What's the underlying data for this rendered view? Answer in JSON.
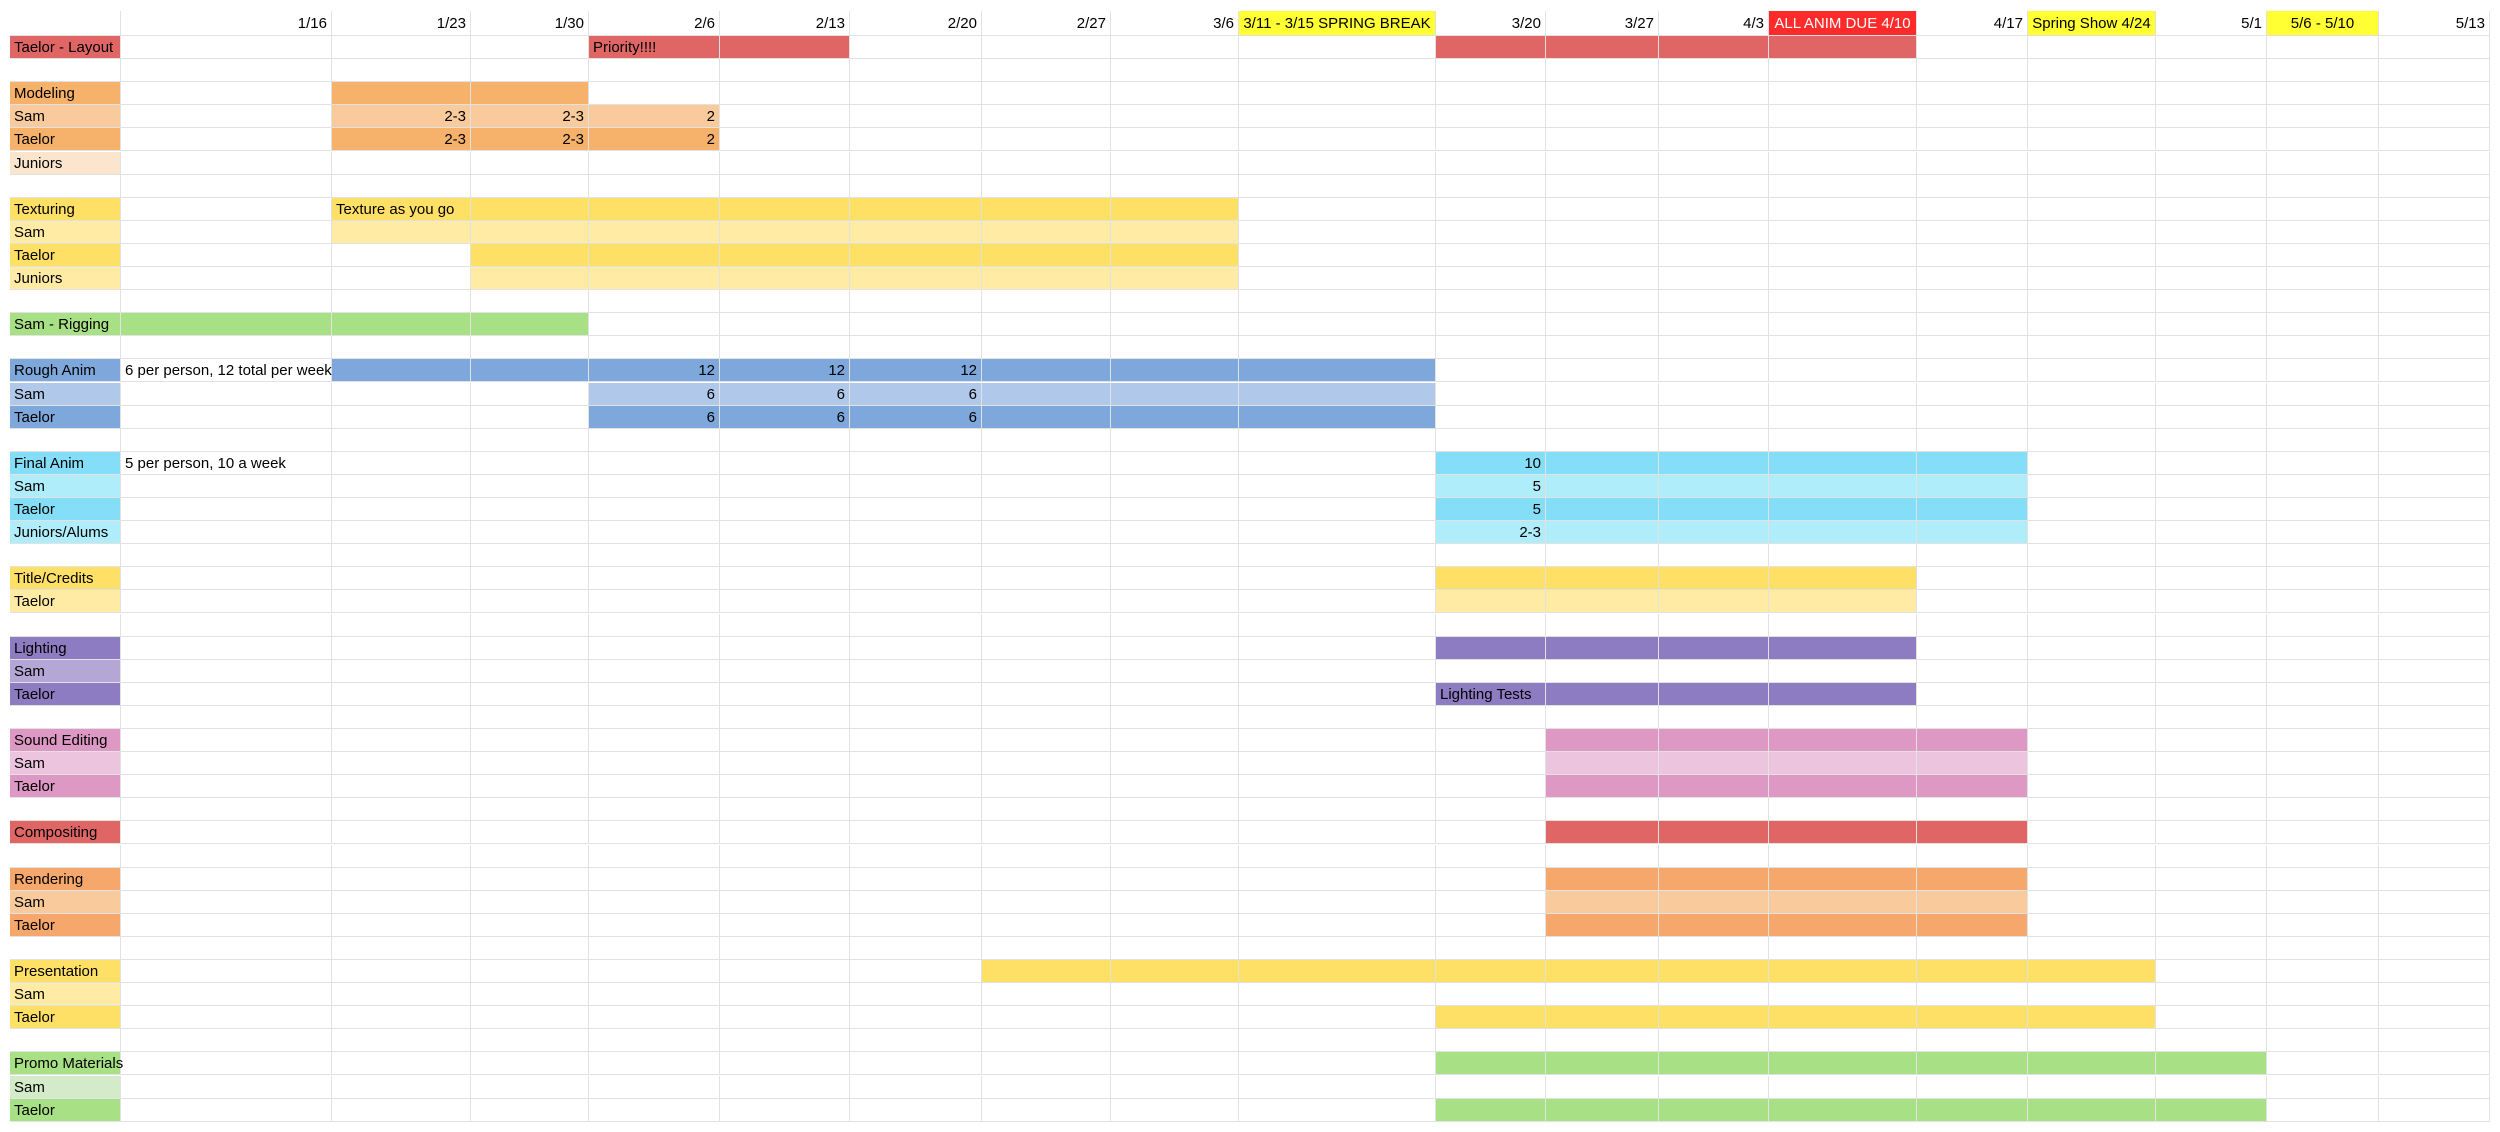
{
  "sheet": {
    "columns": [
      "",
      "1/16",
      "1/23",
      "1/30",
      "2/6",
      "2/13",
      "2/20",
      "2/27",
      "3/6",
      "3/11 - 3/15 SPRING BREAK",
      "3/20",
      "3/27",
      "4/3",
      "ALL ANIM DUE 4/10",
      "4/17",
      "Spring Show 4/24",
      "5/1",
      "5/6 - 5/10",
      "5/13"
    ],
    "header_styles": {
      "9": {
        "bg": "#ffff33",
        "align": "center"
      },
      "13": {
        "bg": "#ff2a2a",
        "color": "#ffffff",
        "align": "center"
      },
      "15": {
        "bg": "#ffff33",
        "align": "center"
      },
      "17": {
        "bg": "#ffff33",
        "align": "center"
      }
    },
    "rows": [
      {
        "label": "Taelor - Layout",
        "bg": "#e06666",
        "spans": [
          {
            "from": 4,
            "to": 5,
            "bg": "#e06666"
          },
          {
            "from": 10,
            "to": 13,
            "bg": "#e06666"
          }
        ],
        "texts": {
          "4": "Priority!!!!"
        }
      },
      {
        "label": ""
      },
      {
        "label": "Modeling",
        "bg": "#f6b26b",
        "spans": [
          {
            "from": 2,
            "to": 3,
            "bg": "#f6b26b"
          }
        ]
      },
      {
        "label": "Sam",
        "bg": "#f9cb9c",
        "spans": [
          {
            "from": 2,
            "to": 4,
            "bg": "#f9cb9c"
          }
        ],
        "values": {
          "2": "2-3",
          "3": "2-3",
          "4": "2"
        }
      },
      {
        "label": "Taelor",
        "bg": "#f6b26b",
        "spans": [
          {
            "from": 2,
            "to": 4,
            "bg": "#f6b26b"
          }
        ],
        "values": {
          "2": "2-3",
          "3": "2-3",
          "4": "2"
        }
      },
      {
        "label": "Juniors",
        "bg": "#fce5cd"
      },
      {
        "label": ""
      },
      {
        "label": "Texturing",
        "bg": "#ffe066",
        "spans": [
          {
            "from": 2,
            "to": 8,
            "bg": "#ffe066"
          }
        ],
        "texts": {
          "2": "Texture as you go"
        }
      },
      {
        "label": "Sam",
        "bg": "#ffeba3",
        "spans": [
          {
            "from": 2,
            "to": 8,
            "bg": "#ffeba3"
          }
        ]
      },
      {
        "label": "Taelor",
        "bg": "#ffe066",
        "spans": [
          {
            "from": 3,
            "to": 8,
            "bg": "#ffe066"
          }
        ]
      },
      {
        "label": "Juniors",
        "bg": "#ffeba3",
        "spans": [
          {
            "from": 3,
            "to": 8,
            "bg": "#ffeba3"
          }
        ]
      },
      {
        "label": ""
      },
      {
        "label": "Sam - Rigging",
        "bg": "#a8e085",
        "spans": [
          {
            "from": 1,
            "to": 3,
            "bg": "#a8e085"
          }
        ]
      },
      {
        "label": ""
      },
      {
        "label": "Rough Anim",
        "bg": "#7ea8dc",
        "spans": [
          {
            "from": 2,
            "to": 9,
            "bg": "#7ea8dc"
          }
        ],
        "texts": {
          "1": "6 per person, 12 total per week"
        },
        "values": {
          "4": "12",
          "5": "12",
          "6": "12"
        }
      },
      {
        "label": "Sam",
        "bg": "#b0c9eb",
        "spans": [
          {
            "from": 4,
            "to": 9,
            "bg": "#b0c9eb"
          }
        ],
        "values": {
          "4": "6",
          "5": "6",
          "6": "6"
        }
      },
      {
        "label": "Taelor",
        "bg": "#7ea8dc",
        "spans": [
          {
            "from": 4,
            "to": 9,
            "bg": "#7ea8dc"
          }
        ],
        "values": {
          "4": "6",
          "5": "6",
          "6": "6"
        }
      },
      {
        "label": ""
      },
      {
        "label": "Final Anim",
        "bg": "#85def7",
        "spans": [
          {
            "from": 10,
            "to": 14,
            "bg": "#85def7"
          }
        ],
        "texts": {
          "1": "5 per person, 10 a week"
        },
        "values": {
          "10": "10"
        }
      },
      {
        "label": "Sam",
        "bg": "#b0edfb",
        "spans": [
          {
            "from": 10,
            "to": 14,
            "bg": "#b0edfb"
          }
        ],
        "values": {
          "10": "5"
        }
      },
      {
        "label": "Taelor",
        "bg": "#85def7",
        "spans": [
          {
            "from": 10,
            "to": 14,
            "bg": "#85def7"
          }
        ],
        "values": {
          "10": "5"
        }
      },
      {
        "label": "Juniors/Alums",
        "bg": "#b0edfb",
        "spans": [
          {
            "from": 10,
            "to": 14,
            "bg": "#b0edfb"
          }
        ],
        "values": {
          "10": "2-3"
        }
      },
      {
        "label": ""
      },
      {
        "label": "Title/Credits",
        "bg": "#ffe066",
        "spans": [
          {
            "from": 10,
            "to": 13,
            "bg": "#ffe066"
          }
        ]
      },
      {
        "label": "Taelor",
        "bg": "#ffeba3",
        "spans": [
          {
            "from": 10,
            "to": 13,
            "bg": "#ffeba3"
          }
        ]
      },
      {
        "label": ""
      },
      {
        "label": "Lighting",
        "bg": "#8e7cc3",
        "spans": [
          {
            "from": 10,
            "to": 13,
            "bg": "#8e7cc3"
          }
        ]
      },
      {
        "label": "Sam",
        "bg": "#b4a7d6"
      },
      {
        "label": "Taelor",
        "bg": "#8e7cc3",
        "spans": [
          {
            "from": 10,
            "to": 13,
            "bg": "#8e7cc3"
          }
        ],
        "texts": {
          "10": "Lighting Tests"
        }
      },
      {
        "label": ""
      },
      {
        "label": "Sound Editing",
        "bg": "#dd99c4",
        "spans": [
          {
            "from": 11,
            "to": 14,
            "bg": "#dd99c4"
          }
        ]
      },
      {
        "label": "Sam",
        "bg": "#ecc4dd",
        "spans": [
          {
            "from": 11,
            "to": 14,
            "bg": "#ecc4dd"
          }
        ]
      },
      {
        "label": "Taelor",
        "bg": "#dd99c4",
        "spans": [
          {
            "from": 11,
            "to": 14,
            "bg": "#dd99c4"
          }
        ]
      },
      {
        "label": ""
      },
      {
        "label": "Compositing",
        "bg": "#e06666",
        "spans": [
          {
            "from": 11,
            "to": 14,
            "bg": "#e06666"
          }
        ]
      },
      {
        "label": ""
      },
      {
        "label": "Rendering",
        "bg": "#f6a76b",
        "spans": [
          {
            "from": 11,
            "to": 14,
            "bg": "#f6a76b"
          }
        ]
      },
      {
        "label": "Sam",
        "bg": "#f9cb9c",
        "spans": [
          {
            "from": 11,
            "to": 14,
            "bg": "#f9cb9c"
          }
        ]
      },
      {
        "label": "Taelor",
        "bg": "#f6a76b",
        "spans": [
          {
            "from": 11,
            "to": 14,
            "bg": "#f6a76b"
          }
        ]
      },
      {
        "label": ""
      },
      {
        "label": "Presentation",
        "bg": "#ffe066",
        "spans": [
          {
            "from": 7,
            "to": 15,
            "bg": "#ffe066"
          }
        ]
      },
      {
        "label": "Sam",
        "bg": "#ffeba3"
      },
      {
        "label": "Taelor",
        "bg": "#ffe066",
        "spans": [
          {
            "from": 10,
            "to": 15,
            "bg": "#ffe066"
          }
        ]
      },
      {
        "label": ""
      },
      {
        "label": "Promo Materials",
        "bg": "#a8e085",
        "spans": [
          {
            "from": 10,
            "to": 16,
            "bg": "#a8e085"
          }
        ]
      },
      {
        "label": "Sam",
        "bg": "#d3ebc9"
      },
      {
        "label": "Taelor",
        "bg": "#a8e085",
        "spans": [
          {
            "from": 10,
            "to": 16,
            "bg": "#a8e085"
          }
        ]
      }
    ]
  }
}
